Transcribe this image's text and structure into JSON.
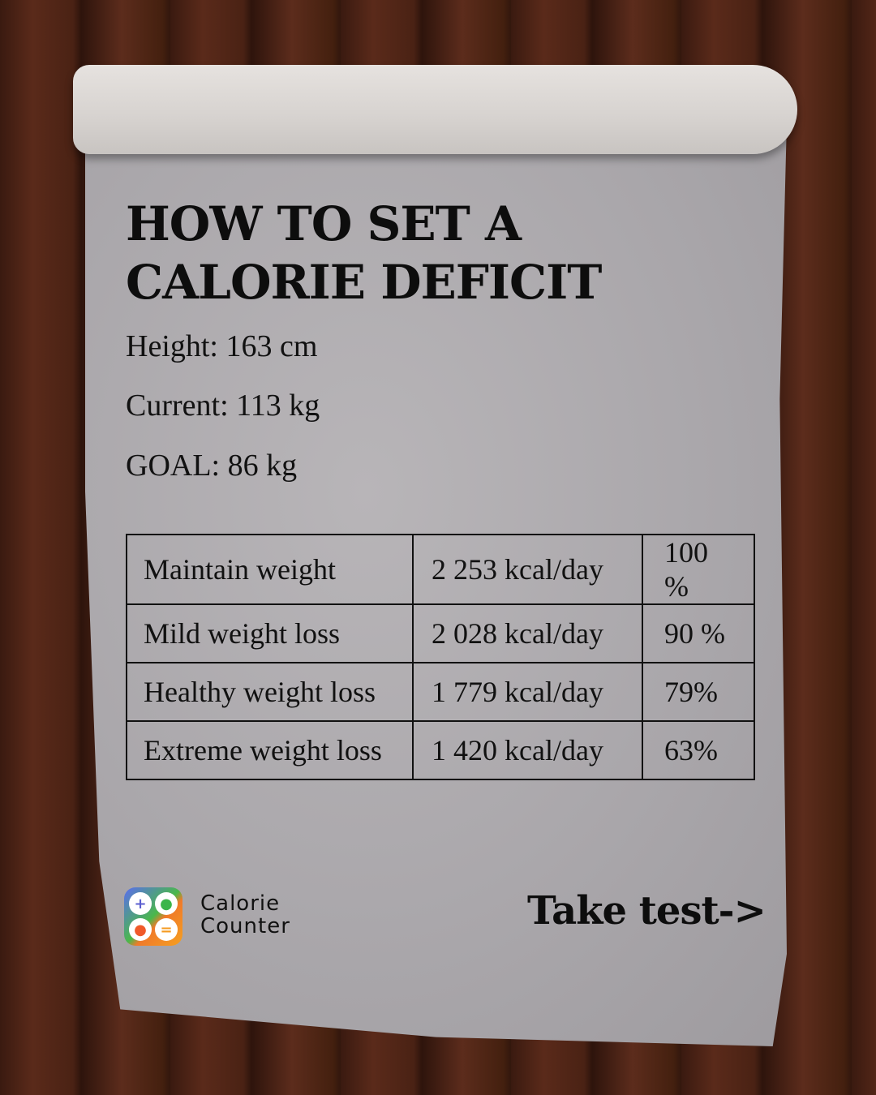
{
  "title": "HOW TO SET A CALORIE DEFICIT",
  "stats": {
    "height": "Height: 163 cm",
    "current": "Current: 113 kg",
    "goal": "GOAL: 86 kg"
  },
  "table": [
    {
      "plan": "Maintain weight",
      "kcal": "2 253 kcal/day",
      "pct": "100 %"
    },
    {
      "plan": "Mild weight loss",
      "kcal": "2 028 kcal/day",
      "pct": "90 %"
    },
    {
      "plan": "Healthy weight loss",
      "kcal": "1 779 kcal/day",
      "pct": "79%"
    },
    {
      "plan": "Extreme weight loss",
      "kcal": "1 420 kcal/day",
      "pct": "63%"
    }
  ],
  "brand": {
    "line1": "Calorie",
    "line2": "Counter",
    "icons": [
      "plus-icon",
      "apple-icon",
      "apple-icon",
      "equals-icon"
    ]
  },
  "cta": "Take test->"
}
